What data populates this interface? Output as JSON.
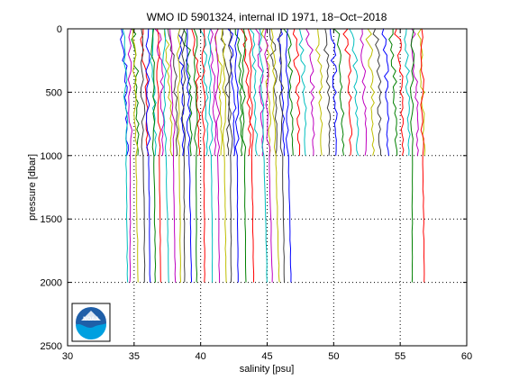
{
  "chart_data": {
    "type": "line",
    "title": "WMO ID 5901324, internal ID 1971, 18−Oct−2018",
    "xlabel": "salinity [psu]",
    "ylabel": "pressure [dbar]",
    "xlim": [
      30,
      60
    ],
    "ylim": [
      0,
      2500
    ],
    "y_reversed": true,
    "grid": "dotted",
    "xticks": [
      30,
      35,
      40,
      45,
      50,
      55,
      60
    ],
    "yticks": [
      0,
      500,
      1000,
      1500,
      2000,
      2500
    ],
    "xtick_labels": [
      "30",
      "35",
      "40",
      "45",
      "50",
      "55",
      "60"
    ],
    "ytick_labels": [
      "0",
      "500",
      "1000",
      "1500",
      "2000",
      "2500"
    ],
    "offset_step": 0.5,
    "deep_profile_starts": [
      34.3,
      34.7,
      35.0,
      35.6,
      36.0,
      36.4,
      36.8,
      37.2,
      37.8,
      38.3,
      38.7,
      39.0,
      39.6,
      40.2,
      40.7,
      41.2,
      41.7,
      42.2,
      42.7,
      43.2,
      43.7,
      44.5,
      44.9,
      45.4,
      46.0,
      46.4,
      55.9,
      56.6
    ],
    "deep_profile_ends": [
      34.5,
      34.7,
      35.3,
      35.8,
      36.2,
      36.6,
      37.0,
      37.6,
      38.1,
      38.5,
      38.8,
      39.3,
      39.7,
      40.3,
      40.9,
      41.4,
      41.9,
      42.3,
      42.8,
      43.4,
      44.0,
      45.0,
      45.4,
      45.9,
      46.3,
      46.8,
      55.9,
      56.8
    ],
    "shallow_profile_starts": [
      34.4,
      35.2,
      35.9,
      36.5,
      37.1,
      37.7,
      38.1,
      38.6,
      39.2,
      39.8,
      40.4,
      41.0,
      41.5,
      42.0,
      42.5,
      43.0,
      43.6,
      44.1,
      44.6,
      45.1,
      45.6,
      46.2,
      46.8,
      47.3,
      47.8,
      48.4,
      49.0,
      49.6,
      50.1,
      50.6,
      51.2,
      51.7,
      52.3,
      52.9,
      53.4,
      54.0,
      54.6,
      55.1,
      55.6,
      56.2,
      56.7
    ],
    "series_colors": [
      "#0000ff",
      "#008000",
      "#ff0000",
      "#00bfbf",
      "#bf00bf",
      "#bfbf00",
      "#404040"
    ]
  },
  "logo": {
    "text": "NOAA",
    "color": "#1f5fa8",
    "accent": "#00a0e0"
  }
}
